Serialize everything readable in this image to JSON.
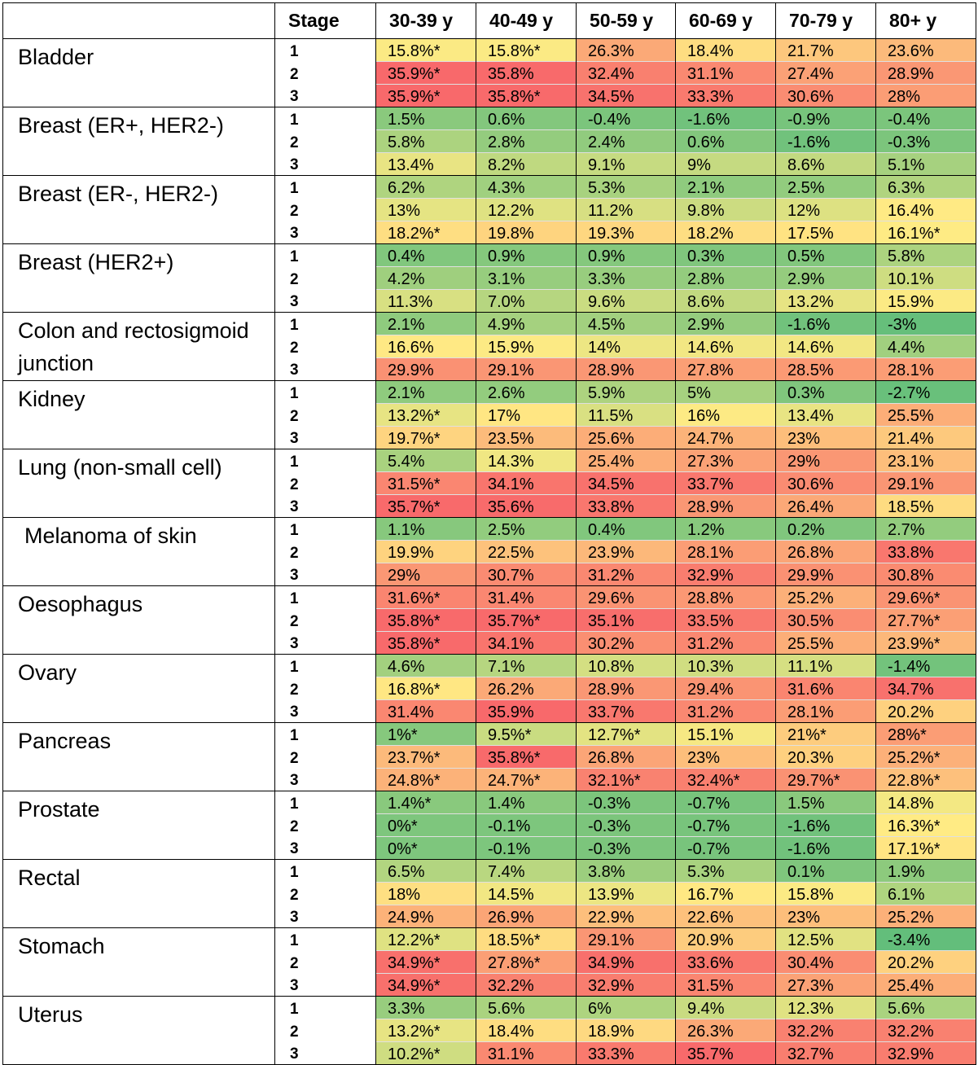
{
  "chart_data": {
    "type": "table",
    "columns": [
      "Stage",
      "30-39 y",
      "40-49 y",
      "50-59 y",
      "60-69 y",
      "70-79 y",
      "80+ y"
    ],
    "colors": {
      "low": "#63BE7B",
      "mid": "#FFEB84",
      "high": "#F8696B"
    },
    "color_scale": [
      -3.4,
      35.9
    ],
    "rows": [
      {
        "cancer": "Bladder",
        "stages": [
          {
            "stage": "1",
            "cells": [
              "15.8%*",
              "15.8%*",
              "26.3%",
              "18.4%",
              "21.7%",
              "23.6%"
            ],
            "values": [
              15.8,
              15.8,
              26.3,
              18.4,
              21.7,
              23.6
            ]
          },
          {
            "stage": "2",
            "cells": [
              "35.9%*",
              "35.8%",
              "32.4%",
              "31.1%",
              "27.4%",
              "28.9%"
            ],
            "values": [
              35.9,
              35.8,
              32.4,
              31.1,
              27.4,
              28.9
            ]
          },
          {
            "stage": "3",
            "cells": [
              "35.9%*",
              "35.8%*",
              "34.5%",
              "33.3%",
              "30.6%",
              "28%"
            ],
            "values": [
              35.9,
              35.8,
              34.5,
              33.3,
              30.6,
              28
            ]
          }
        ]
      },
      {
        "cancer": "Breast (ER+, HER2-)",
        "stages": [
          {
            "stage": "1",
            "cells": [
              "1.5%",
              "0.6%",
              "-0.4%",
              "-1.6%",
              "-0.9%",
              "-0.4%"
            ],
            "values": [
              1.5,
              0.6,
              -0.4,
              -1.6,
              -0.9,
              -0.4
            ]
          },
          {
            "stage": "2",
            "cells": [
              "5.8%",
              "2.8%",
              "2.4%",
              "0.6%",
              "-1.6%",
              "-0.3%"
            ],
            "values": [
              5.8,
              2.8,
              2.4,
              0.6,
              -1.6,
              -0.3
            ]
          },
          {
            "stage": "3",
            "cells": [
              "13.4%",
              "8.2%",
              "9.1%",
              "9%",
              "8.6%",
              "5.1%"
            ],
            "values": [
              13.4,
              8.2,
              9.1,
              9,
              8.6,
              5.1
            ]
          }
        ]
      },
      {
        "cancer": "Breast (ER-, HER2-)",
        "stages": [
          {
            "stage": "1",
            "cells": [
              "6.2%",
              "4.3%",
              "5.3%",
              "2.1%",
              "2.5%",
              "6.3%"
            ],
            "values": [
              6.2,
              4.3,
              5.3,
              2.1,
              2.5,
              6.3
            ]
          },
          {
            "stage": "2",
            "cells": [
              "13%",
              "12.2%",
              "11.2%",
              "9.8%",
              "12%",
              "16.4%"
            ],
            "values": [
              13,
              12.2,
              11.2,
              9.8,
              12,
              16.4
            ]
          },
          {
            "stage": "3",
            "cells": [
              "18.2%*",
              "19.8%",
              "19.3%",
              "18.2%",
              "17.5%",
              "16.1%*"
            ],
            "values": [
              18.2,
              19.8,
              19.3,
              18.2,
              17.5,
              16.1
            ]
          }
        ]
      },
      {
        "cancer": "Breast (HER2+)",
        "stages": [
          {
            "stage": "1",
            "cells": [
              "0.4%",
              "0.9%",
              "0.9%",
              "0.3%",
              "0.5%",
              "5.8%"
            ],
            "values": [
              0.4,
              0.9,
              0.9,
              0.3,
              0.5,
              5.8
            ]
          },
          {
            "stage": "2",
            "cells": [
              "4.2%",
              "3.1%",
              "3.3%",
              "2.8%",
              "2.9%",
              "10.1%"
            ],
            "values": [
              4.2,
              3.1,
              3.3,
              2.8,
              2.9,
              10.1
            ]
          },
          {
            "stage": "3",
            "cells": [
              "11.3%",
              "7.0%",
              "9.6%",
              "8.6%",
              "13.2%",
              "15.9%"
            ],
            "values": [
              11.3,
              7.0,
              9.6,
              8.6,
              13.2,
              15.9
            ]
          }
        ]
      },
      {
        "cancer": "Colon and rectosigmoid junction",
        "stages": [
          {
            "stage": "1",
            "cells": [
              "2.1%",
              "4.9%",
              "4.5%",
              "2.9%",
              "-1.6%",
              "-3%"
            ],
            "values": [
              2.1,
              4.9,
              4.5,
              2.9,
              -1.6,
              -3
            ]
          },
          {
            "stage": "2",
            "cells": [
              "16.6%",
              "15.9%",
              "14%",
              "14.6%",
              "14.6%",
              "4.4%"
            ],
            "values": [
              16.6,
              15.9,
              14,
              14.6,
              14.6,
              4.4
            ]
          },
          {
            "stage": "3",
            "cells": [
              "29.9%",
              "29.1%",
              "28.9%",
              "27.8%",
              "28.5%",
              "28.1%"
            ],
            "values": [
              29.9,
              29.1,
              28.9,
              27.8,
              28.5,
              28.1
            ]
          }
        ]
      },
      {
        "cancer": "Kidney",
        "stages": [
          {
            "stage": "1",
            "cells": [
              "2.1%",
              "2.6%",
              "5.9%",
              "5%",
              "0.3%",
              "-2.7%"
            ],
            "values": [
              2.1,
              2.6,
              5.9,
              5,
              0.3,
              -2.7
            ]
          },
          {
            "stage": "2",
            "cells": [
              "13.2%*",
              "17%",
              "11.5%",
              "16%",
              "13.4%",
              "25.5%"
            ],
            "values": [
              13.2,
              17,
              11.5,
              16,
              13.4,
              25.5
            ]
          },
          {
            "stage": "3",
            "cells": [
              "19.7%*",
              "23.5%",
              "25.6%",
              "24.7%",
              "23%",
              "21.4%"
            ],
            "values": [
              19.7,
              23.5,
              25.6,
              24.7,
              23,
              21.4
            ]
          }
        ]
      },
      {
        "cancer": "Lung (non-small cell)",
        "stages": [
          {
            "stage": "1",
            "cells": [
              "5.4%",
              "14.3%",
              "25.4%",
              "27.3%",
              "29%",
              "23.1%"
            ],
            "values": [
              5.4,
              14.3,
              25.4,
              27.3,
              29,
              23.1
            ]
          },
          {
            "stage": "2",
            "cells": [
              "31.5%*",
              "34.1%",
              "34.5%",
              "33.7%",
              "30.6%",
              "29.1%"
            ],
            "values": [
              31.5,
              34.1,
              34.5,
              33.7,
              30.6,
              29.1
            ]
          },
          {
            "stage": "3",
            "cells": [
              "35.7%*",
              "35.6%",
              "33.8%",
              "28.9%",
              "26.4%",
              "18.5%"
            ],
            "values": [
              35.7,
              35.6,
              33.8,
              28.9,
              26.4,
              18.5
            ]
          }
        ]
      },
      {
        "cancer": "Melanoma of skin",
        "indent": true,
        "stages": [
          {
            "stage": "1",
            "cells": [
              "1.1%",
              "2.5%",
              "0.4%",
              "1.2%",
              "0.2%",
              "2.7%"
            ],
            "values": [
              1.1,
              2.5,
              0.4,
              1.2,
              0.2,
              2.7
            ]
          },
          {
            "stage": "2",
            "cells": [
              "19.9%",
              "22.5%",
              "23.9%",
              "28.1%",
              "26.8%",
              "33.8%"
            ],
            "values": [
              19.9,
              22.5,
              23.9,
              28.1,
              26.8,
              33.8
            ]
          },
          {
            "stage": "3",
            "cells": [
              "29%",
              "30.7%",
              "31.2%",
              "32.9%",
              "29.9%",
              "30.8%"
            ],
            "values": [
              29,
              30.7,
              31.2,
              32.9,
              29.9,
              30.8
            ]
          }
        ]
      },
      {
        "cancer": "Oesophagus",
        "stages": [
          {
            "stage": "1",
            "cells": [
              "31.6%*",
              "31.4%",
              "29.6%",
              "28.8%",
              "25.2%",
              "29.6%*"
            ],
            "values": [
              31.6,
              31.4,
              29.6,
              28.8,
              25.2,
              29.6
            ]
          },
          {
            "stage": "2",
            "cells": [
              "35.8%*",
              "35.7%*",
              "35.1%",
              "33.5%",
              "30.5%",
              "27.7%*"
            ],
            "values": [
              35.8,
              35.7,
              35.1,
              33.5,
              30.5,
              27.7
            ]
          },
          {
            "stage": "3",
            "cells": [
              "35.8%*",
              "34.1%",
              "30.2%",
              "31.2%",
              "25.5%",
              "23.9%*"
            ],
            "values": [
              35.8,
              34.1,
              30.2,
              31.2,
              25.5,
              23.9
            ]
          }
        ]
      },
      {
        "cancer": "Ovary",
        "stages": [
          {
            "stage": "1",
            "cells": [
              "4.6%",
              "7.1%",
              "10.8%",
              "10.3%",
              "11.1%",
              "-1.4%"
            ],
            "values": [
              4.6,
              7.1,
              10.8,
              10.3,
              11.1,
              -1.4
            ]
          },
          {
            "stage": "2",
            "cells": [
              "16.8%*",
              "26.2%",
              "28.9%",
              "29.4%",
              "31.6%",
              "34.7%"
            ],
            "values": [
              16.8,
              26.2,
              28.9,
              29.4,
              31.6,
              34.7
            ]
          },
          {
            "stage": "3",
            "cells": [
              "31.4%",
              "35.9%",
              "33.7%",
              "31.2%",
              "28.1%",
              "20.2%"
            ],
            "values": [
              31.4,
              35.9,
              33.7,
              31.2,
              28.1,
              20.2
            ]
          }
        ]
      },
      {
        "cancer": "Pancreas",
        "stages": [
          {
            "stage": "1",
            "cells": [
              "1%*",
              "9.5%*",
              "12.7%*",
              "15.1%",
              "21%*",
              "28%*"
            ],
            "values": [
              1,
              9.5,
              12.7,
              15.1,
              21,
              28
            ]
          },
          {
            "stage": "2",
            "cells": [
              "23.7%*",
              "35.8%*",
              "26.8%",
              "23%",
              "20.3%",
              "25.2%*"
            ],
            "values": [
              23.7,
              35.8,
              26.8,
              23,
              20.3,
              25.2
            ]
          },
          {
            "stage": "3",
            "cells": [
              "24.8%*",
              "24.7%*",
              "32.1%*",
              "32.4%*",
              "29.7%*",
              "22.8%*"
            ],
            "values": [
              24.8,
              24.7,
              32.1,
              32.4,
              29.7,
              22.8
            ]
          }
        ]
      },
      {
        "cancer": "Prostate",
        "stages": [
          {
            "stage": "1",
            "cells": [
              "1.4%*",
              "1.4%",
              "-0.3%",
              "-0.7%",
              "1.5%",
              "14.8%"
            ],
            "values": [
              1.4,
              1.4,
              -0.3,
              -0.7,
              1.5,
              14.8
            ]
          },
          {
            "stage": "2",
            "cells": [
              "0%*",
              "-0.1%",
              "-0.3%",
              "-0.7%",
              "-1.6%",
              "16.3%*"
            ],
            "values": [
              0,
              -0.1,
              -0.3,
              -0.7,
              -1.6,
              16.3
            ]
          },
          {
            "stage": "3",
            "cells": [
              "0%*",
              "-0.1%",
              "-0.3%",
              "-0.7%",
              "-1.6%",
              "17.1%*"
            ],
            "values": [
              0,
              -0.1,
              -0.3,
              -0.7,
              -1.6,
              17.1
            ]
          }
        ]
      },
      {
        "cancer": "Rectal",
        "stages": [
          {
            "stage": "1",
            "cells": [
              "6.5%",
              "7.4%",
              "3.8%",
              "5.3%",
              "0.1%",
              "1.9%"
            ],
            "values": [
              6.5,
              7.4,
              3.8,
              5.3,
              0.1,
              1.9
            ]
          },
          {
            "stage": "2",
            "cells": [
              "18%",
              "14.5%",
              "13.9%",
              "16.7%",
              "15.8%",
              "6.1%"
            ],
            "values": [
              18,
              14.5,
              13.9,
              16.7,
              15.8,
              6.1
            ]
          },
          {
            "stage": "3",
            "cells": [
              "24.9%",
              "26.9%",
              "22.9%",
              "22.6%",
              "23%",
              "25.2%"
            ],
            "values": [
              24.9,
              26.9,
              22.9,
              22.6,
              23,
              25.2
            ]
          }
        ]
      },
      {
        "cancer": "Stomach",
        "stages": [
          {
            "stage": "1",
            "cells": [
              "12.2%*",
              "18.5%*",
              "29.1%",
              "20.9%",
              "12.5%",
              "-3.4%"
            ],
            "values": [
              12.2,
              18.5,
              29.1,
              20.9,
              12.5,
              -3.4
            ]
          },
          {
            "stage": "2",
            "cells": [
              "34.9%*",
              "27.8%*",
              "34.9%",
              "33.6%",
              "30.4%",
              "20.2%"
            ],
            "values": [
              34.9,
              27.8,
              34.9,
              33.6,
              30.4,
              20.2
            ]
          },
          {
            "stage": "3",
            "cells": [
              "34.9%*",
              "32.2%",
              "32.9%",
              "31.5%",
              "27.3%",
              "25.4%"
            ],
            "values": [
              34.9,
              32.2,
              32.9,
              31.5,
              27.3,
              25.4
            ]
          }
        ]
      },
      {
        "cancer": "Uterus",
        "stages": [
          {
            "stage": "1",
            "cells": [
              "3.3%",
              "5.6%",
              "6%",
              "9.4%",
              "12.3%",
              "5.6%"
            ],
            "values": [
              3.3,
              5.6,
              6,
              9.4,
              12.3,
              5.6
            ]
          },
          {
            "stage": "2",
            "cells": [
              "13.2%*",
              "18.4%",
              "18.9%",
              "26.3%",
              "32.2%",
              "32.2%"
            ],
            "values": [
              13.2,
              18.4,
              18.9,
              26.3,
              32.2,
              32.2
            ]
          },
          {
            "stage": "3",
            "cells": [
              "10.2%*",
              "31.1%",
              "33.3%",
              "35.7%",
              "32.7%",
              "32.9%"
            ],
            "values": [
              10.2,
              31.1,
              33.3,
              35.7,
              32.7,
              32.9
            ]
          }
        ]
      }
    ]
  }
}
